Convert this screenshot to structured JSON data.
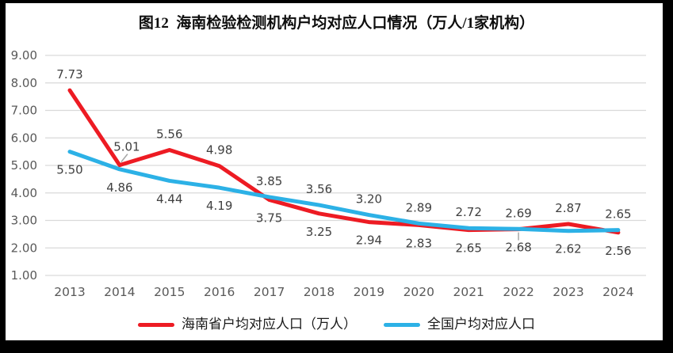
{
  "chart_data": {
    "type": "line",
    "title": "图12  海南检验检测机构户均对应人口情况（万人/1家机构）",
    "categories": [
      "2013",
      "2014",
      "2015",
      "2016",
      "2017",
      "2018",
      "2019",
      "2020",
      "2021",
      "2022",
      "2023",
      "2024"
    ],
    "series": [
      {
        "name": "海南省户均对应人口（万人）",
        "color": "#ED1B23",
        "values": [
          7.73,
          5.01,
          5.56,
          4.98,
          3.75,
          3.25,
          2.94,
          2.83,
          2.65,
          2.68,
          2.87,
          2.56
        ],
        "labels": [
          "7.73",
          "5.01",
          "5.56",
          "4.98",
          "3.75",
          "3.25",
          "2.94",
          "2.83",
          "2.65",
          "2.68",
          "2.87",
          "2.56"
        ]
      },
      {
        "name": "全国户均对应人口",
        "color": "#2CB1E6",
        "values": [
          5.5,
          4.86,
          4.44,
          4.19,
          3.85,
          3.56,
          3.2,
          2.89,
          2.72,
          2.69,
          2.62,
          2.65
        ],
        "labels": [
          "5.50",
          "4.86",
          "4.44",
          "4.19",
          "3.85",
          "3.56",
          "3.20",
          "2.89",
          "2.72",
          "2.69",
          "2.62",
          "2.65"
        ]
      }
    ],
    "ylim": [
      1.0,
      9.0
    ],
    "ytick_labels": [
      "9.00",
      "8.00",
      "7.00",
      "6.00",
      "5.00",
      "4.00",
      "3.00",
      "2.00",
      "1.00"
    ],
    "grid": true,
    "legend_position": "bottom",
    "annotations": [
      {
        "series": 0,
        "x_index": 1,
        "type": "leader",
        "dir": "up-right"
      },
      {
        "series": 0,
        "x_index": 9,
        "type": "leader",
        "dir": "down"
      }
    ],
    "colors": {
      "grid": "#D9D9D9",
      "tick_label": "#595959",
      "data_label": "#3F3F3F",
      "leader": "#A6A6A6",
      "frame": "#000000"
    }
  }
}
